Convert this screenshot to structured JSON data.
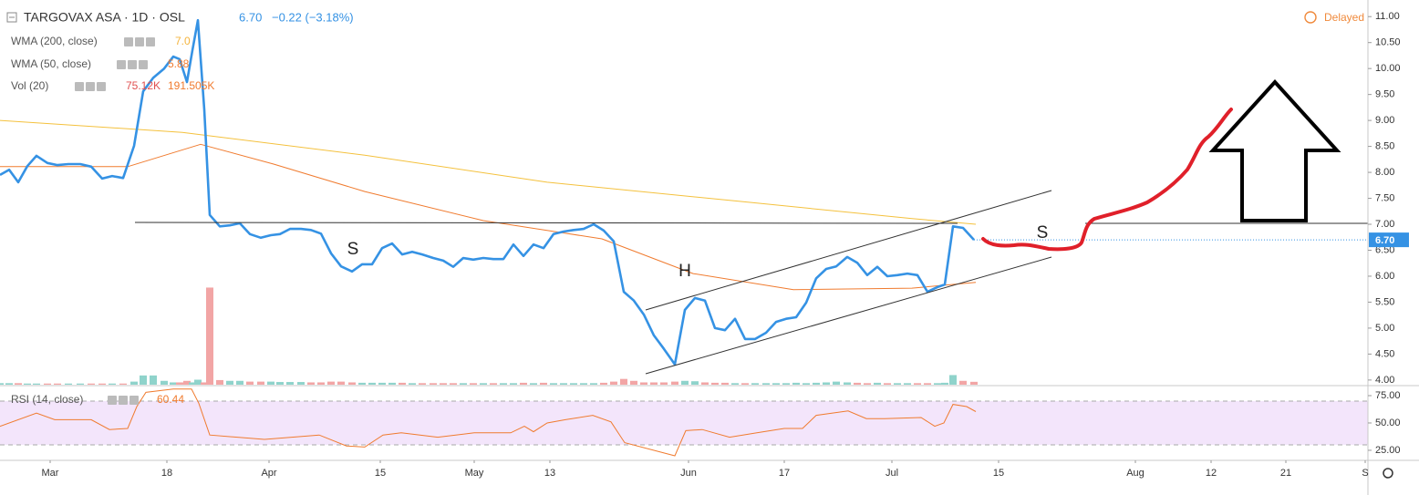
{
  "chart_data": {
    "type": "line",
    "title": "TARGOVAX ASA · 1D · OSL",
    "price_label": "6.70",
    "change_label": "−0.22 (−3.18%)",
    "delayed_label": "Delayed",
    "xlim": [
      0,
      150
    ],
    "xticks": [
      {
        "value": 5.5,
        "label": "Mar"
      },
      {
        "value": 18.3,
        "label": "18"
      },
      {
        "value": 29.5,
        "label": "Apr"
      },
      {
        "value": 41.7,
        "label": "15"
      },
      {
        "value": 52,
        "label": "May"
      },
      {
        "value": 60.3,
        "label": "13"
      },
      {
        "value": 75.5,
        "label": "Jun"
      },
      {
        "value": 86,
        "label": "17"
      },
      {
        "value": 97.8,
        "label": "Jul"
      },
      {
        "value": 109.5,
        "label": "15"
      },
      {
        "value": 124.5,
        "label": "Aug"
      },
      {
        "value": 132.8,
        "label": "12"
      },
      {
        "value": 141,
        "label": "21"
      },
      {
        "value": 149.7,
        "label": "S"
      }
    ],
    "ylim": [
      3.91,
      11.32
    ],
    "yticks": [
      {
        "value": 4,
        "label": "4.00"
      },
      {
        "value": 4.5,
        "label": "4.50"
      },
      {
        "value": 5,
        "label": "5.00"
      },
      {
        "value": 5.5,
        "label": "5.50"
      },
      {
        "value": 6,
        "label": "6.00"
      },
      {
        "value": 6.5,
        "label": "6.50"
      },
      {
        "value": 7,
        "label": "7.00"
      },
      {
        "value": 7.5,
        "label": "7.50"
      },
      {
        "value": 8,
        "label": "8.00"
      },
      {
        "value": 8.5,
        "label": "8.50"
      },
      {
        "value": 9,
        "label": "9.00"
      },
      {
        "value": 9.5,
        "label": "9.50"
      },
      {
        "value": 10,
        "label": "10.00"
      },
      {
        "value": 10.5,
        "label": "10.50"
      },
      {
        "value": 11,
        "label": "11.00"
      }
    ],
    "grid": false,
    "series": [
      {
        "name": "TARGOVAX ASA",
        "color": "#3592e4",
        "x": [
          0,
          1,
          2,
          3,
          4,
          5.2,
          6.3,
          7.5,
          8.8,
          10,
          11.2,
          12.3,
          13.5,
          14.7,
          15.7,
          16.8,
          18,
          19,
          19.7,
          20.5,
          21.1,
          21.7,
          22.4,
          23,
          24.1,
          25.2,
          26.3,
          27.4,
          28.6,
          29.7,
          30.7,
          31.8,
          33,
          34.1,
          35.2,
          36.3,
          37.4,
          38.6,
          39.7,
          40.8,
          41.9,
          43,
          44.1,
          45.2,
          46.3,
          47.5,
          48.6,
          49.7,
          50.8,
          51.9,
          53,
          54.1,
          55.2,
          56.3,
          57.4,
          58.5,
          59.6,
          60.7,
          61.8,
          62.9,
          64,
          65.1,
          66.2,
          67.3,
          68.4,
          69.5,
          70.6,
          71.7,
          72.8,
          74,
          75.1,
          76.2,
          77.3,
          78.4,
          79.5,
          80.6,
          81.7,
          82.8,
          84,
          85.1,
          86.2,
          87.3,
          88.4,
          89.5,
          90.6,
          91.7,
          92.9,
          94,
          95.1,
          96.2,
          97.3,
          98.4,
          99.5,
          100.6,
          101.7,
          102.8,
          103.6,
          104.5,
          105.6,
          106.8
        ],
        "values": [
          7.95,
          8.05,
          7.81,
          8.12,
          8.32,
          8.18,
          8.14,
          8.16,
          8.16,
          8.11,
          7.88,
          7.93,
          7.89,
          8.51,
          9.56,
          9.82,
          10.0,
          10.23,
          10.18,
          9.74,
          10.35,
          10.93,
          9.21,
          7.18,
          6.96,
          6.98,
          7.02,
          6.81,
          6.74,
          6.79,
          6.81,
          6.91,
          6.91,
          6.89,
          6.82,
          6.44,
          6.19,
          6.09,
          6.23,
          6.23,
          6.54,
          6.63,
          6.42,
          6.47,
          6.42,
          6.35,
          6.3,
          6.18,
          6.35,
          6.32,
          6.35,
          6.33,
          6.33,
          6.61,
          6.39,
          6.61,
          6.54,
          6.81,
          6.86,
          6.89,
          6.91,
          7.0,
          6.88,
          6.67,
          5.7,
          5.53,
          5.26,
          4.86,
          4.6,
          4.3,
          5.35,
          5.58,
          5.53,
          5.0,
          4.96,
          5.18,
          4.79,
          4.79,
          4.91,
          5.12,
          5.18,
          5.21,
          5.49,
          5.96,
          6.14,
          6.19,
          6.37,
          6.26,
          6.02,
          6.18,
          6.0,
          6.02,
          6.05,
          6.02,
          5.7,
          5.79,
          5.84,
          6.96,
          6.93,
          6.7
        ]
      },
      {
        "name": "WMA (200, close)",
        "value_label": "7.0",
        "color": "#f4c13d",
        "x": [
          0,
          20,
          40,
          60,
          80,
          100,
          107
        ],
        "values": [
          9.0,
          8.77,
          8.33,
          7.81,
          7.46,
          7.11,
          7.0
        ]
      },
      {
        "name": "WMA (50, close)",
        "value_label": "5.88",
        "color": "#f07b2f",
        "x": [
          0,
          14,
          22,
          30,
          40,
          53,
          66,
          76,
          87,
          100,
          107
        ],
        "values": [
          8.11,
          8.11,
          8.54,
          8.16,
          7.63,
          7.07,
          6.72,
          6.05,
          5.74,
          5.77,
          5.88
        ]
      }
    ],
    "volume": {
      "name": "Vol (20)",
      "value_label": "75.12K",
      "ma_label": "191.505K",
      "up_color": "#8fd3cb",
      "down_color": "#f2a5a5",
      "ylim": [
        0,
        10000
      ],
      "values": [
        40,
        40,
        40,
        30,
        30,
        30,
        30,
        30,
        30,
        30,
        30,
        30,
        30,
        80,
        240,
        240,
        100,
        60,
        60,
        100,
        60,
        130,
        60,
        2525,
        120,
        100,
        100,
        80,
        80,
        80,
        70,
        70,
        70,
        60,
        60,
        80,
        80,
        60,
        50,
        50,
        50,
        50,
        50,
        40,
        40,
        40,
        40,
        40,
        40,
        40,
        40,
        40,
        40,
        40,
        50,
        40,
        50,
        40,
        40,
        40,
        40,
        40,
        50,
        80,
        150,
        100,
        60,
        60,
        60,
        80,
        100,
        90,
        60,
        50,
        50,
        40,
        40,
        40,
        40,
        40,
        40,
        50,
        40,
        50,
        60,
        80,
        60,
        50,
        40,
        50,
        40,
        40,
        40,
        40,
        40,
        40,
        50,
        250,
        100,
        75.12
      ]
    },
    "rsi": {
      "name": "RSI (14, close)",
      "value_label": "60.44",
      "color": "#f07b2f",
      "band_color": "#f3e5fb",
      "bands": [
        30,
        70
      ],
      "ylim": [
        15.8,
        82.5
      ],
      "yticks": [
        {
          "value": 25,
          "label": "25.00"
        },
        {
          "value": 50,
          "label": "50.00"
        },
        {
          "value": 75,
          "label": "75.00"
        }
      ],
      "x": [
        0,
        4,
        6,
        10,
        12,
        14,
        15,
        16,
        19,
        21,
        21.8,
        23,
        29,
        35,
        38,
        40,
        42,
        44,
        48,
        52,
        56,
        57.5,
        58.5,
        60,
        62,
        65,
        67,
        68.5,
        74,
        75.2,
        77,
        80,
        83,
        86,
        88,
        89.5,
        93,
        95,
        97,
        101,
        102.5,
        103.5,
        104.5,
        106,
        107
      ],
      "values": [
        47,
        59,
        53,
        53,
        44,
        45,
        65,
        78,
        81,
        81,
        68,
        39,
        35,
        39,
        29,
        28,
        39,
        41,
        37,
        41,
        41,
        47,
        42,
        50,
        53,
        57,
        51,
        32,
        20,
        43,
        44,
        37,
        41,
        45,
        45,
        57,
        61,
        54,
        54,
        55,
        47,
        50,
        67,
        65,
        60.44
      ]
    },
    "annotations": [
      "S",
      "H",
      "S"
    ]
  }
}
